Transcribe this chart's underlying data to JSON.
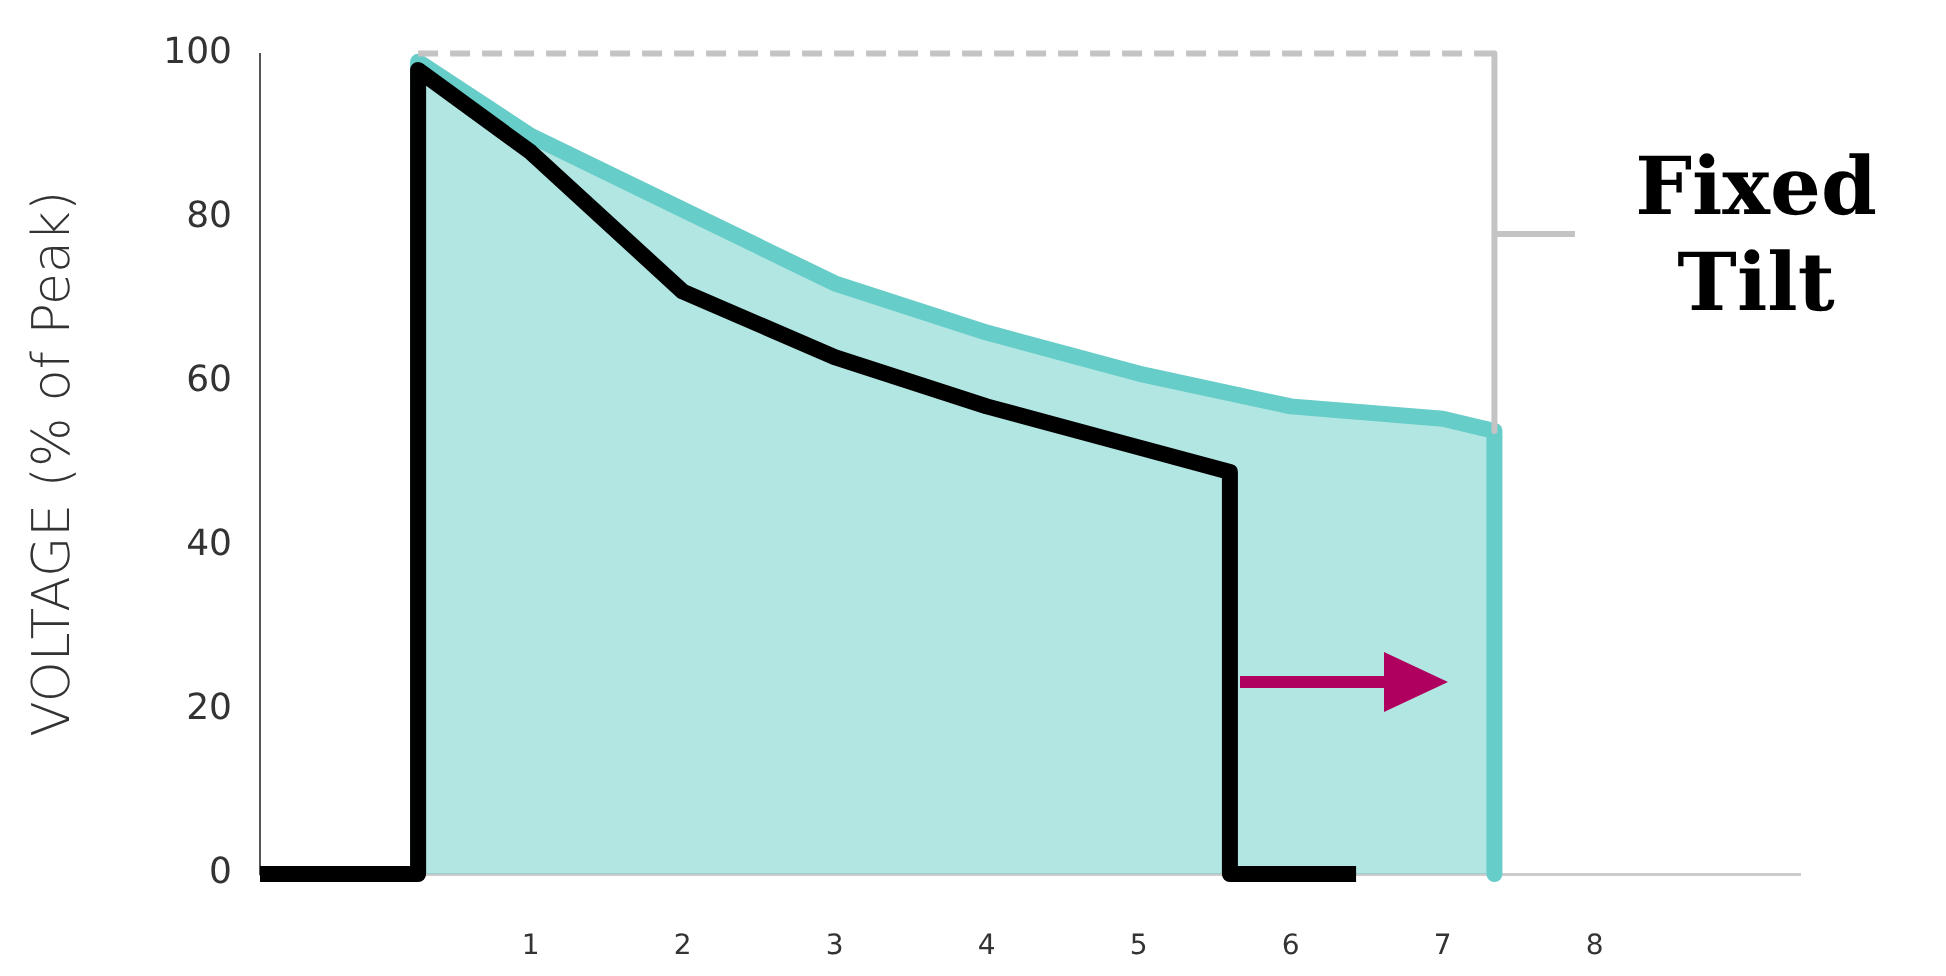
{
  "chart_data": {
    "type": "line",
    "ylabel": "VOLTAGE (% of Peak)",
    "xlim": [
      -0.78,
      9.35
    ],
    "xticks": [
      1,
      2,
      3,
      4,
      5,
      6,
      7,
      8
    ],
    "ylim": [
      0,
      100
    ],
    "yticks": [
      0,
      20,
      40,
      60,
      80,
      100
    ],
    "grid": false,
    "legend": false,
    "marker": "none",
    "annotations": [
      "Fixed Tilt"
    ],
    "series": [
      {
        "type": "area",
        "color": "#66cdc8",
        "x": [
          0.26,
          0.26,
          1,
          2,
          3,
          4,
          5,
          6,
          7,
          7.34,
          7.34
        ],
        "values": [
          0,
          99,
          90,
          81,
          72,
          66,
          61,
          57,
          55.5,
          54,
          0
        ]
      },
      {
        "type": "line",
        "color": "#c4c4c4",
        "line_style": "dashed",
        "x": [
          0.26,
          7.34
        ],
        "values": [
          100,
          100
        ]
      },
      {
        "type": "line",
        "color": "#c4c4c4",
        "line_style": "solid",
        "x": [
          7.34,
          7.34
        ],
        "values": [
          100,
          54
        ]
      },
      {
        "type": "line",
        "color": "#c4c4c4",
        "line_style": "solid",
        "x": [
          7.34,
          7.87
        ],
        "values": [
          78,
          78
        ]
      },
      {
        "type": "line",
        "color": "#000000",
        "x": [
          -0.78,
          0.26,
          0.26,
          1,
          2,
          3,
          4,
          5,
          5.6,
          5.6,
          6.43
        ],
        "values": [
          0,
          0,
          98,
          88,
          71,
          63,
          57,
          52,
          49,
          0,
          0
        ]
      }
    ]
  }
}
